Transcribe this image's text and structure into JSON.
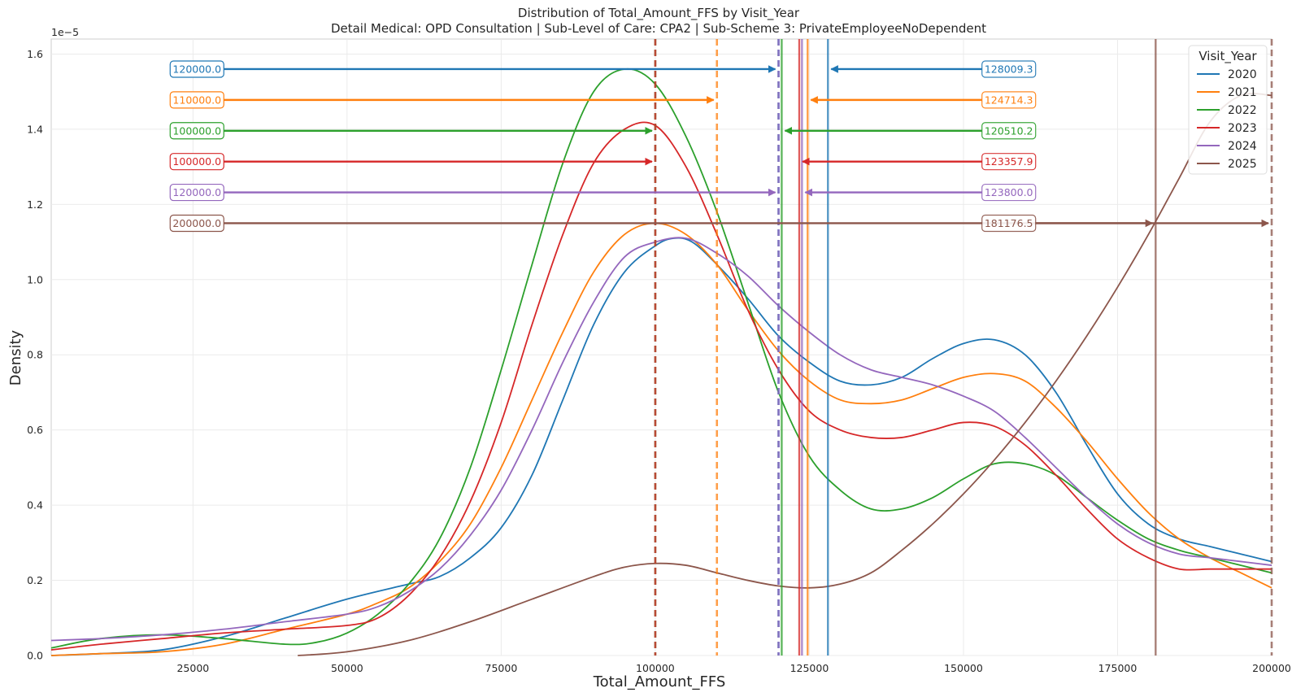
{
  "chart_data": {
    "type": "line",
    "title": "Distribution of Total_Amount_FFS by Visit_Year",
    "subtitle": "Detail Medical: OPD Consultation | Sub-Level of Care: CPA2 | Sub-Scheme 3: PrivateEmployeeNoDependent",
    "xlabel": "Total_Amount_FFS",
    "ylabel": "Density",
    "y_scale_label": "1e−5",
    "xlim": [
      2000,
      200000
    ],
    "ylim": [
      0,
      1.64
    ],
    "x_ticks": [
      25000,
      50000,
      75000,
      100000,
      125000,
      150000,
      175000,
      200000
    ],
    "y_ticks": [
      0.0,
      0.2,
      0.4,
      0.6,
      0.8,
      1.0,
      1.2,
      1.4,
      1.6
    ],
    "grid": true,
    "legend": {
      "title": "Visit_Year",
      "placement": "top-right"
    },
    "series": [
      {
        "name": "2020",
        "color": "#1f77b4",
        "median": 120000.0,
        "mean": 128009.3,
        "x": [
          2000,
          10000,
          20000,
          30000,
          40000,
          50000,
          60000,
          65000,
          70000,
          75000,
          80000,
          85000,
          90000,
          95000,
          100000,
          103000,
          106000,
          110000,
          115000,
          120000,
          125000,
          130000,
          135000,
          140000,
          145000,
          150000,
          155000,
          160000,
          165000,
          170000,
          175000,
          180000,
          185000,
          190000,
          195000,
          200000
        ],
        "y": [
          0.0,
          0.005,
          0.015,
          0.05,
          0.1,
          0.15,
          0.19,
          0.21,
          0.26,
          0.34,
          0.48,
          0.68,
          0.88,
          1.02,
          1.09,
          1.11,
          1.1,
          1.04,
          0.95,
          0.85,
          0.78,
          0.73,
          0.72,
          0.74,
          0.79,
          0.83,
          0.84,
          0.8,
          0.7,
          0.56,
          0.43,
          0.35,
          0.31,
          0.29,
          0.27,
          0.25
        ]
      },
      {
        "name": "2021",
        "color": "#ff7f0e",
        "median": 110000.0,
        "mean": 124714.3,
        "x": [
          2000,
          10000,
          20000,
          30000,
          40000,
          50000,
          55000,
          60000,
          65000,
          70000,
          75000,
          80000,
          85000,
          90000,
          95000,
          100000,
          105000,
          110000,
          115000,
          120000,
          125000,
          130000,
          135000,
          140000,
          145000,
          150000,
          155000,
          160000,
          165000,
          170000,
          175000,
          180000,
          185000,
          190000,
          195000,
          200000
        ],
        "y": [
          0.0,
          0.005,
          0.01,
          0.03,
          0.07,
          0.11,
          0.14,
          0.18,
          0.25,
          0.35,
          0.5,
          0.68,
          0.86,
          1.02,
          1.12,
          1.15,
          1.12,
          1.04,
          0.92,
          0.81,
          0.73,
          0.68,
          0.67,
          0.68,
          0.71,
          0.74,
          0.75,
          0.73,
          0.66,
          0.57,
          0.47,
          0.38,
          0.31,
          0.26,
          0.22,
          0.18
        ]
      },
      {
        "name": "2022",
        "color": "#2ca02c",
        "median": 100000.0,
        "mean": 120510.2,
        "x": [
          2000,
          10000,
          20000,
          30000,
          40000,
          45000,
          50000,
          55000,
          60000,
          65000,
          70000,
          75000,
          80000,
          85000,
          90000,
          95000,
          100000,
          105000,
          110000,
          115000,
          120000,
          125000,
          130000,
          135000,
          140000,
          145000,
          150000,
          155000,
          160000,
          165000,
          170000,
          175000,
          180000,
          185000,
          190000,
          195000,
          200000
        ],
        "y": [
          0.02,
          0.045,
          0.055,
          0.045,
          0.03,
          0.035,
          0.06,
          0.11,
          0.19,
          0.31,
          0.5,
          0.76,
          1.04,
          1.31,
          1.5,
          1.56,
          1.52,
          1.38,
          1.18,
          0.94,
          0.7,
          0.53,
          0.44,
          0.39,
          0.39,
          0.42,
          0.47,
          0.51,
          0.51,
          0.48,
          0.42,
          0.36,
          0.31,
          0.28,
          0.26,
          0.24,
          0.22
        ]
      },
      {
        "name": "2023",
        "color": "#d62728",
        "median": 100000.0,
        "mean": 123357.9,
        "x": [
          2000,
          10000,
          20000,
          30000,
          40000,
          50000,
          55000,
          60000,
          65000,
          70000,
          75000,
          80000,
          85000,
          90000,
          95000,
          100000,
          105000,
          110000,
          115000,
          120000,
          125000,
          130000,
          135000,
          140000,
          145000,
          150000,
          155000,
          160000,
          165000,
          170000,
          175000,
          180000,
          185000,
          190000,
          195000,
          200000
        ],
        "y": [
          0.015,
          0.03,
          0.045,
          0.06,
          0.07,
          0.08,
          0.1,
          0.16,
          0.26,
          0.41,
          0.62,
          0.88,
          1.12,
          1.31,
          1.4,
          1.41,
          1.3,
          1.12,
          0.92,
          0.76,
          0.65,
          0.6,
          0.58,
          0.58,
          0.6,
          0.62,
          0.61,
          0.56,
          0.48,
          0.39,
          0.31,
          0.26,
          0.23,
          0.23,
          0.23,
          0.23
        ]
      },
      {
        "name": "2024",
        "color": "#9467bd",
        "median": 120000.0,
        "mean": 123800.0,
        "x": [
          2000,
          10000,
          20000,
          30000,
          40000,
          50000,
          55000,
          60000,
          65000,
          70000,
          75000,
          80000,
          85000,
          90000,
          95000,
          100000,
          105000,
          110000,
          115000,
          120000,
          125000,
          130000,
          135000,
          140000,
          145000,
          150000,
          155000,
          160000,
          165000,
          170000,
          175000,
          180000,
          185000,
          190000,
          195000,
          200000
        ],
        "y": [
          0.04,
          0.045,
          0.055,
          0.07,
          0.09,
          0.11,
          0.13,
          0.17,
          0.23,
          0.32,
          0.44,
          0.6,
          0.78,
          0.94,
          1.06,
          1.1,
          1.11,
          1.07,
          1.01,
          0.93,
          0.86,
          0.8,
          0.76,
          0.74,
          0.72,
          0.69,
          0.65,
          0.58,
          0.5,
          0.42,
          0.35,
          0.3,
          0.27,
          0.26,
          0.25,
          0.24
        ]
      },
      {
        "name": "2025",
        "color": "#8c564b",
        "median": 200000.0,
        "mean": 181176.5,
        "x": [
          42000,
          50000,
          60000,
          70000,
          80000,
          90000,
          95000,
          100000,
          105000,
          110000,
          115000,
          120000,
          125000,
          130000,
          135000,
          140000,
          145000,
          150000,
          155000,
          160000,
          165000,
          170000,
          175000,
          180000,
          185000,
          190000,
          195000,
          200000
        ],
        "y": [
          0.0,
          0.01,
          0.04,
          0.09,
          0.15,
          0.21,
          0.235,
          0.245,
          0.24,
          0.22,
          0.2,
          0.185,
          0.18,
          0.19,
          0.22,
          0.28,
          0.35,
          0.43,
          0.52,
          0.62,
          0.73,
          0.85,
          0.98,
          1.12,
          1.27,
          1.42,
          1.49,
          1.49
        ]
      }
    ]
  }
}
